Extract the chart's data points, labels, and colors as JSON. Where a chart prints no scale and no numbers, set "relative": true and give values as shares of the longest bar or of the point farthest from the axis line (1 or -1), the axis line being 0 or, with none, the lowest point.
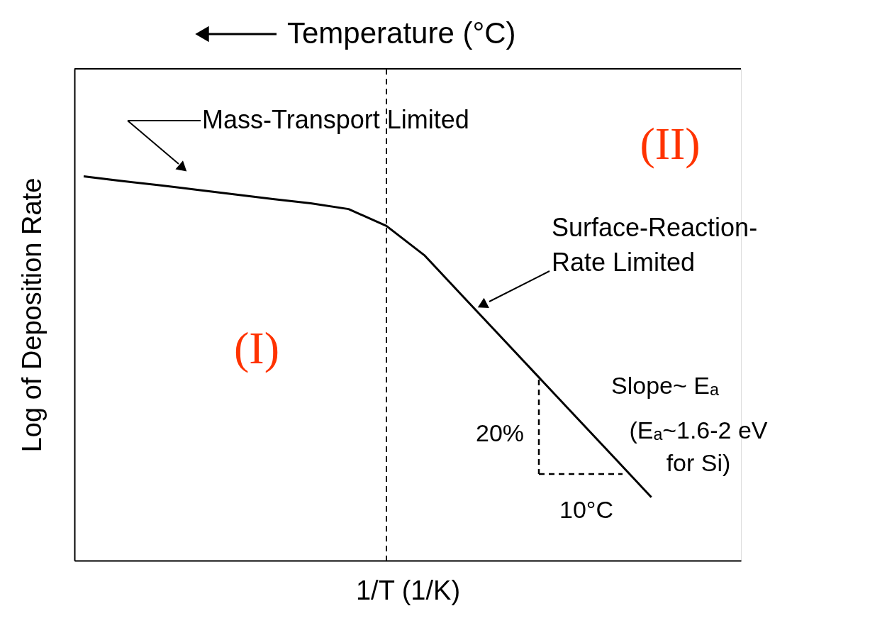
{
  "chart_data": {
    "type": "line",
    "relative": true,
    "xlabel": "1/T (1/K)",
    "ylabel": "Log of Deposition Rate",
    "x2label": "Temperature (°C)",
    "categories": [
      null,
      null,
      null,
      null,
      null,
      null,
      null,
      null,
      null,
      null,
      null,
      null,
      null,
      null,
      null,
      null
    ],
    "series": [
      {
        "color": "#000000",
        "values": [
          1.0,
          0.988,
          0.977,
          0.965,
          0.953,
          0.941,
          0.93,
          0.915,
          0.871,
          0.795,
          0.69,
          0.585,
          0.48,
          0.375,
          0.27,
          0.165
        ]
      }
    ],
    "annotations": [
      "Mass-Transport Limited",
      "(II)",
      "Surface-Reaction-\nRate Limited",
      "(I)",
      "Slope~ Eₐ",
      "(Eₐ~1.6-2 eV\nfor Si)",
      "20%",
      "10°C"
    ]
  }
}
